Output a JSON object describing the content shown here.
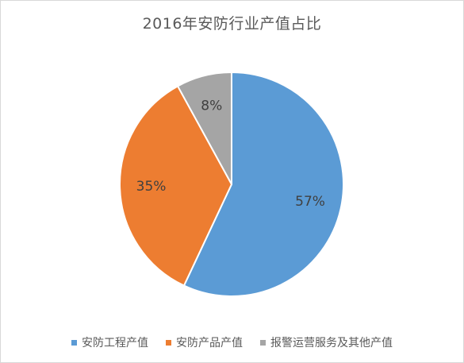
{
  "chart_data": {
    "type": "pie",
    "title": "2016年安防行业产值占比",
    "categories": [
      "安防工程产值",
      "安防产品产值",
      "报警运营服务及其他产值"
    ],
    "values": [
      57,
      35,
      8
    ],
    "labels": [
      "57%",
      "35%",
      "8%"
    ],
    "colors": [
      "#5b9bd5",
      "#ed7d31",
      "#a5a5a5"
    ],
    "legend_position": "bottom"
  }
}
